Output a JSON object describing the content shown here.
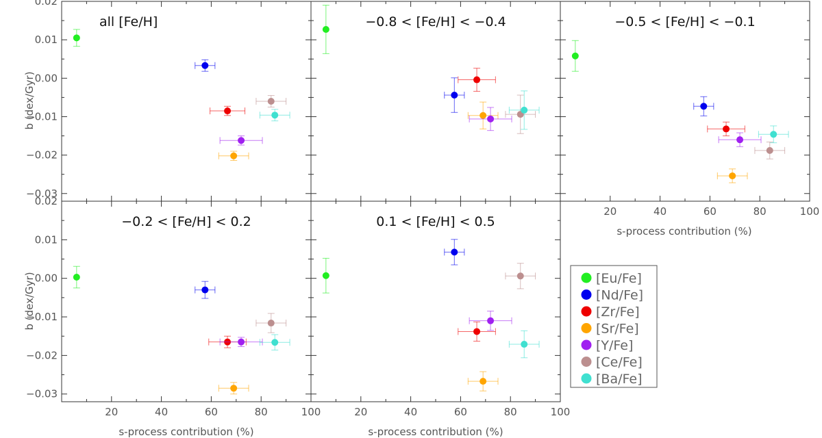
{
  "chart_data": {
    "type": "scatter",
    "xlabel": "s-process contribution (%)",
    "ylabel": "b (dex/Gyr)",
    "xlim": [
      0,
      100
    ],
    "ylim": [
      -0.032,
      0.02
    ],
    "xticks": [
      "20",
      "40",
      "60",
      "80",
      "100"
    ],
    "yticks": [
      "0.02",
      "0.01",
      "0.00",
      "−0.01",
      "−0.02",
      "−0.03"
    ],
    "legend": [
      {
        "label": "[Eu/Fe]",
        "color": "#22ee22"
      },
      {
        "label": "[Nd/Fe]",
        "color": "#0000ee"
      },
      {
        "label": "[Zr/Fe]",
        "color": "#ee0000"
      },
      {
        "label": "[Sr/Fe]",
        "color": "#ffa500"
      },
      {
        "label": "[Y/Fe]",
        "color": "#a020f0"
      },
      {
        "label": "[Ce/Fe]",
        "color": "#bc8f8f"
      },
      {
        "label": "[Ba/Fe]",
        "color": "#40e0d0"
      }
    ],
    "panels": [
      {
        "title": "all [Fe/H]",
        "points": [
          {
            "el": "Eu",
            "x": 6,
            "y": 0.0105,
            "xerr": 0,
            "yerr": 0.0022
          },
          {
            "el": "Nd",
            "x": 57.5,
            "y": 0.0033,
            "xerr": 4,
            "yerr": 0.0015
          },
          {
            "el": "Zr",
            "x": 66.5,
            "y": -0.0085,
            "xerr": 7,
            "yerr": 0.0012
          },
          {
            "el": "Sr",
            "x": 69,
            "y": -0.0202,
            "xerr": 6,
            "yerr": 0.0012
          },
          {
            "el": "Y",
            "x": 72,
            "y": -0.0162,
            "xerr": 8.5,
            "yerr": 0.0012
          },
          {
            "el": "Ce",
            "x": 84,
            "y": -0.006,
            "xerr": 6,
            "yerr": 0.0015
          },
          {
            "el": "Ba",
            "x": 85.5,
            "y": -0.0096,
            "xerr": 6,
            "yerr": 0.0015
          }
        ]
      },
      {
        "title": "−0.8 < [Fe/H] < −0.4",
        "points": [
          {
            "el": "Eu",
            "x": 6,
            "y": 0.0127,
            "xerr": 0,
            "yerr": 0.0063
          },
          {
            "el": "Nd",
            "x": 57.5,
            "y": -0.0044,
            "xerr": 4,
            "yerr": 0.0045
          },
          {
            "el": "Zr",
            "x": 66.5,
            "y": -0.0004,
            "xerr": 7.5,
            "yerr": 0.003
          },
          {
            "el": "Sr",
            "x": 69,
            "y": -0.0097,
            "xerr": 6,
            "yerr": 0.0035
          },
          {
            "el": "Y",
            "x": 72,
            "y": -0.0106,
            "xerr": 8.5,
            "yerr": 0.003
          },
          {
            "el": "Ce",
            "x": 84,
            "y": -0.0094,
            "xerr": 6,
            "yerr": 0.005
          },
          {
            "el": "Ba",
            "x": 85.5,
            "y": -0.0083,
            "xerr": 6,
            "yerr": 0.005
          }
        ]
      },
      {
        "title": "−0.5 < [Fe/H] < −0.1",
        "points": [
          {
            "el": "Eu",
            "x": 6,
            "y": 0.0058,
            "xerr": 0,
            "yerr": 0.004
          },
          {
            "el": "Nd",
            "x": 57.5,
            "y": -0.0073,
            "xerr": 4,
            "yerr": 0.0025
          },
          {
            "el": "Zr",
            "x": 66.5,
            "y": -0.0132,
            "xerr": 7.5,
            "yerr": 0.0018
          },
          {
            "el": "Sr",
            "x": 69,
            "y": -0.0254,
            "xerr": 6,
            "yerr": 0.0018
          },
          {
            "el": "Y",
            "x": 72,
            "y": -0.016,
            "xerr": 8.5,
            "yerr": 0.0018
          },
          {
            "el": "Ce",
            "x": 84,
            "y": -0.0188,
            "xerr": 6,
            "yerr": 0.0022
          },
          {
            "el": "Ba",
            "x": 85.5,
            "y": -0.0146,
            "xerr": 6,
            "yerr": 0.0022
          }
        ]
      },
      {
        "title": "−0.2 < [Fe/H] < 0.2",
        "points": [
          {
            "el": "Eu",
            "x": 6,
            "y": 0.0003,
            "xerr": 0,
            "yerr": 0.0028
          },
          {
            "el": "Nd",
            "x": 57.5,
            "y": -0.003,
            "xerr": 4,
            "yerr": 0.0022
          },
          {
            "el": "Zr",
            "x": 66.5,
            "y": -0.0165,
            "xerr": 7.5,
            "yerr": 0.0015
          },
          {
            "el": "Sr",
            "x": 69,
            "y": -0.0285,
            "xerr": 6,
            "yerr": 0.0015
          },
          {
            "el": "Y",
            "x": 72,
            "y": -0.0165,
            "xerr": 8.5,
            "yerr": 0.0012
          },
          {
            "el": "Ce",
            "x": 84,
            "y": -0.0116,
            "xerr": 6,
            "yerr": 0.0025
          },
          {
            "el": "Ba",
            "x": 85.5,
            "y": -0.0166,
            "xerr": 6,
            "yerr": 0.002
          }
        ]
      },
      {
        "title": "0.1 < [Fe/H] < 0.5",
        "points": [
          {
            "el": "Eu",
            "x": 6,
            "y": 0.0007,
            "xerr": 0,
            "yerr": 0.0045
          },
          {
            "el": "Nd",
            "x": 57.5,
            "y": 0.0068,
            "xerr": 4,
            "yerr": 0.0033
          },
          {
            "el": "Zr",
            "x": 66.5,
            "y": -0.0138,
            "xerr": 7.5,
            "yerr": 0.0025
          },
          {
            "el": "Sr",
            "x": 69,
            "y": -0.0267,
            "xerr": 6,
            "yerr": 0.0025
          },
          {
            "el": "Y",
            "x": 72,
            "y": -0.011,
            "xerr": 8.5,
            "yerr": 0.0025
          },
          {
            "el": "Ce",
            "x": 84,
            "y": 0.0006,
            "xerr": 6,
            "yerr": 0.0033
          },
          {
            "el": "Ba",
            "x": 85.5,
            "y": -0.0171,
            "xerr": 6,
            "yerr": 0.0035
          }
        ]
      }
    ]
  }
}
